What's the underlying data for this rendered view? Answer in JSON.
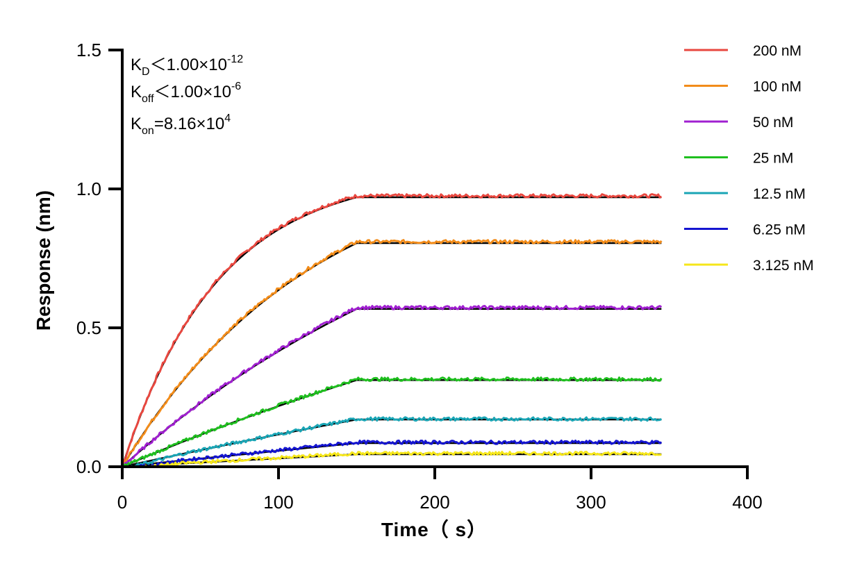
{
  "chart_data": {
    "type": "line",
    "title": "",
    "xlabel": "Time（ s）",
    "ylabel": "Response (nm)",
    "xlim": [
      0,
      400
    ],
    "ylim": [
      0,
      1.5
    ],
    "x_ticks": [
      0,
      100,
      200,
      300,
      400
    ],
    "x_tick_labels": [
      "0",
      "100",
      "200",
      "300",
      "400"
    ],
    "y_ticks": [
      0.0,
      0.5,
      1.0,
      1.5
    ],
    "y_tick_labels": [
      "0.0",
      "0.5",
      "1.0",
      "1.5"
    ],
    "grid": false,
    "legend_position": "right",
    "association_end_s": 150,
    "end_time_s": 345,
    "fit_color": "#000000",
    "series": [
      {
        "name": "200 nM",
        "color": "#e8473f",
        "plateau": 0.975,
        "fitted_plateau": 0.97
      },
      {
        "name": "100 nM",
        "color": "#f28c1a",
        "plateau": 0.81,
        "fitted_plateau": 0.805
      },
      {
        "name": "50 nM",
        "color": "#a020d0",
        "plateau": 0.573,
        "fitted_plateau": 0.568
      },
      {
        "name": "25 nM",
        "color": "#1fbf1f",
        "plateau": 0.315,
        "fitted_plateau": 0.312
      },
      {
        "name": "12.5 nM",
        "color": "#1aa5b5",
        "plateau": 0.172,
        "fitted_plateau": 0.17
      },
      {
        "name": "6.25 nM",
        "color": "#1414d0",
        "plateau": 0.088,
        "fitted_plateau": 0.085
      },
      {
        "name": "3.125 nM",
        "color": "#f5e61a",
        "plateau": 0.048,
        "fitted_plateau": 0.045
      }
    ],
    "annotations": {
      "kd": {
        "base": "K",
        "sub": "D",
        "mid": "＜1.00×10",
        "sup": "-12"
      },
      "koff": {
        "base": "K",
        "sub": "off",
        "mid": "＜1.00×10",
        "sup": "-6"
      },
      "kon": {
        "base": "K",
        "sub": "on",
        "mid": "=8.16×10",
        "sup": "4"
      }
    }
  }
}
